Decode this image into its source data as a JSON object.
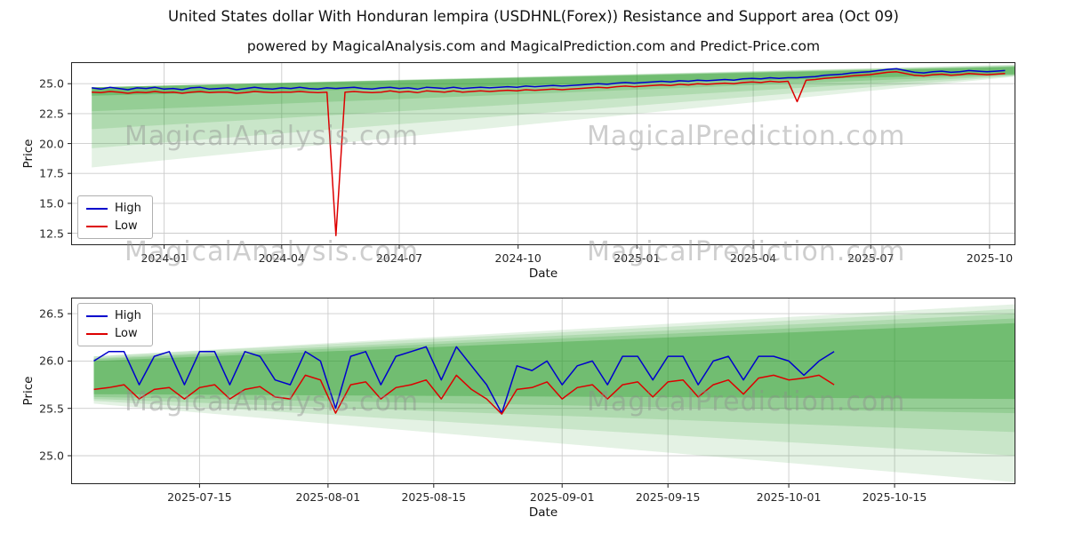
{
  "figure": {
    "title": "United States dollar With Honduran lempira (USDHNL(Forex)) Resistance and Support area (Oct 09)",
    "subtitle": "powered by MagicalAnalysis.com and MagicalPrediction.com and Predict-Price.com",
    "watermark_left": "MagicalAnalysis.com",
    "watermark_right": "MagicalPrediction.com",
    "colors": {
      "high": "#0000cd",
      "low": "#dd0000",
      "band": "#2e9e2e",
      "grid": "#cccccc",
      "spine": "#222222"
    }
  },
  "chart_data": [
    {
      "type": "line",
      "ylabel": "Price",
      "xlabel": "Date",
      "xlim": [
        "2023-10-21",
        "2025-10-21"
      ],
      "ylim": [
        11.5,
        26.8
      ],
      "grid": true,
      "legend_position": "lower-left",
      "y_ticks": [
        12.5,
        15.0,
        17.5,
        20.0,
        22.5,
        25.0
      ],
      "x_ticks": [
        {
          "date": "2024-01-01",
          "label": "2024-01"
        },
        {
          "date": "2024-04-01",
          "label": "2024-04"
        },
        {
          "date": "2024-07-01",
          "label": "2024-07"
        },
        {
          "date": "2024-10-01",
          "label": "2024-10"
        },
        {
          "date": "2025-01-01",
          "label": "2025-01"
        },
        {
          "date": "2025-04-01",
          "label": "2025-04"
        },
        {
          "date": "2025-07-01",
          "label": "2025-07"
        },
        {
          "date": "2025-10-01",
          "label": "2025-10"
        }
      ],
      "series_start": "2023-11-06",
      "series_step_days": 7,
      "series": [
        {
          "name": "High",
          "color": "#0000cd",
          "values": [
            24.65,
            24.55,
            24.7,
            24.6,
            24.5,
            24.65,
            24.6,
            24.7,
            24.55,
            24.6,
            24.5,
            24.65,
            24.7,
            24.55,
            24.6,
            24.65,
            24.5,
            24.6,
            24.7,
            24.6,
            24.55,
            24.65,
            24.6,
            24.7,
            24.6,
            24.55,
            24.65,
            24.6,
            24.65,
            24.7,
            24.6,
            24.55,
            24.65,
            24.7,
            24.6,
            24.65,
            24.55,
            24.7,
            24.65,
            24.6,
            24.7,
            24.6,
            24.65,
            24.7,
            24.65,
            24.7,
            24.75,
            24.7,
            24.8,
            24.75,
            24.8,
            24.85,
            24.8,
            24.85,
            24.9,
            24.95,
            25.0,
            24.95,
            25.05,
            25.1,
            25.05,
            25.1,
            25.15,
            25.2,
            25.15,
            25.25,
            25.2,
            25.3,
            25.25,
            25.3,
            25.35,
            25.3,
            25.4,
            25.45,
            25.4,
            25.5,
            25.45,
            25.5,
            25.5,
            25.55,
            25.6,
            25.7,
            25.75,
            25.8,
            25.9,
            25.95,
            26.0,
            26.1,
            26.2,
            26.25,
            26.1,
            25.95,
            25.9,
            26.0,
            26.05,
            25.95,
            26.0,
            26.1,
            26.05,
            26.0,
            26.05,
            26.1
          ]
        },
        {
          "name": "Low",
          "color": "#dd0000",
          "values": [
            24.3,
            24.25,
            24.35,
            24.3,
            24.2,
            24.3,
            24.25,
            24.35,
            24.25,
            24.3,
            24.2,
            24.3,
            24.35,
            24.25,
            24.3,
            24.3,
            24.2,
            24.25,
            24.35,
            24.3,
            24.25,
            24.3,
            24.3,
            24.35,
            24.3,
            24.25,
            24.3,
            12.3,
            24.3,
            24.35,
            24.3,
            24.25,
            24.3,
            24.4,
            24.3,
            24.35,
            24.25,
            24.4,
            24.35,
            24.3,
            24.4,
            24.3,
            24.35,
            24.4,
            24.35,
            24.4,
            24.45,
            24.4,
            24.5,
            24.45,
            24.5,
            24.55,
            24.5,
            24.55,
            24.6,
            24.65,
            24.7,
            24.65,
            24.75,
            24.8,
            24.75,
            24.8,
            24.85,
            24.9,
            24.85,
            24.95,
            24.9,
            25.0,
            24.95,
            25.0,
            25.05,
            25.0,
            25.1,
            25.15,
            25.1,
            25.2,
            25.15,
            25.2,
            23.5,
            25.3,
            25.35,
            25.45,
            25.5,
            25.55,
            25.65,
            25.7,
            25.75,
            25.85,
            25.95,
            26.0,
            25.85,
            25.7,
            25.65,
            25.75,
            25.8,
            25.7,
            25.75,
            25.85,
            25.8,
            25.75,
            25.8,
            25.85
          ]
        }
      ],
      "bands": [
        {
          "x0": "2023-11-06",
          "x1": "2025-10-21",
          "bot0": 18.0,
          "top0": 24.7,
          "bot1": 25.6,
          "top1": 26.6,
          "color": "#2e9e2e",
          "opacity": 0.13
        },
        {
          "x0": "2023-11-06",
          "x1": "2025-10-21",
          "bot0": 19.6,
          "top0": 24.7,
          "bot1": 25.65,
          "top1": 26.55,
          "color": "#2e9e2e",
          "opacity": 0.15
        },
        {
          "x0": "2023-11-06",
          "x1": "2025-10-21",
          "bot0": 21.2,
          "top0": 24.7,
          "bot1": 25.7,
          "top1": 26.5,
          "color": "#2e9e2e",
          "opacity": 0.17
        },
        {
          "x0": "2023-11-06",
          "x1": "2025-10-21",
          "bot0": 22.7,
          "top0": 24.7,
          "bot1": 25.75,
          "top1": 26.45,
          "color": "#2e9e2e",
          "opacity": 0.2
        },
        {
          "x0": "2023-11-06",
          "x1": "2025-10-21",
          "bot0": 24.0,
          "top0": 24.7,
          "bot1": 25.8,
          "top1": 26.4,
          "color": "#2e9e2e",
          "opacity": 0.35
        }
      ]
    },
    {
      "type": "line",
      "ylabel": "Price",
      "xlabel": "Date",
      "xlim": [
        "2025-06-28",
        "2025-10-31"
      ],
      "ylim": [
        24.7,
        26.67
      ],
      "grid": true,
      "legend_position": "upper-left",
      "y_ticks": [
        25.0,
        25.5,
        26.0,
        26.5
      ],
      "x_ticks": [
        {
          "date": "2025-07-15",
          "label": "2025-07-15"
        },
        {
          "date": "2025-08-01",
          "label": "2025-08-01"
        },
        {
          "date": "2025-08-15",
          "label": "2025-08-15"
        },
        {
          "date": "2025-09-01",
          "label": "2025-09-01"
        },
        {
          "date": "2025-09-15",
          "label": "2025-09-15"
        },
        {
          "date": "2025-10-01",
          "label": "2025-10-01"
        },
        {
          "date": "2025-10-15",
          "label": "2025-10-15"
        }
      ],
      "series_start": "2025-07-01",
      "series_step_days": 2,
      "series": [
        {
          "name": "High",
          "color": "#0000cd",
          "values": [
            26.0,
            26.1,
            26.1,
            25.75,
            26.05,
            26.1,
            25.75,
            26.1,
            26.1,
            25.75,
            26.1,
            26.05,
            25.8,
            25.75,
            26.1,
            26.0,
            25.5,
            26.05,
            26.1,
            25.75,
            26.05,
            26.1,
            26.15,
            25.8,
            26.15,
            25.95,
            25.75,
            25.45,
            25.95,
            25.9,
            26.0,
            25.75,
            25.95,
            26.0,
            25.75,
            26.05,
            26.05,
            25.8,
            26.05,
            26.05,
            25.75,
            26.0,
            26.05,
            25.8,
            26.05,
            26.05,
            26.0,
            25.85,
            26.0,
            26.1
          ]
        },
        {
          "name": "Low",
          "color": "#dd0000",
          "values": [
            25.7,
            25.72,
            25.75,
            25.6,
            25.7,
            25.72,
            25.6,
            25.72,
            25.75,
            25.6,
            25.7,
            25.73,
            25.62,
            25.6,
            25.85,
            25.8,
            25.45,
            25.75,
            25.78,
            25.6,
            25.72,
            25.75,
            25.8,
            25.6,
            25.85,
            25.7,
            25.6,
            25.44,
            25.7,
            25.72,
            25.78,
            25.6,
            25.72,
            25.75,
            25.6,
            25.75,
            25.78,
            25.62,
            25.78,
            25.8,
            25.62,
            25.75,
            25.8,
            25.65,
            25.82,
            25.85,
            25.8,
            25.82,
            25.85,
            25.75
          ]
        }
      ],
      "bands": [
        {
          "x0": "2025-07-01",
          "x1": "2025-10-31",
          "bot0": 25.55,
          "top0": 26.05,
          "bot1": 24.72,
          "top1": 26.6,
          "color": "#2e9e2e",
          "opacity": 0.13
        },
        {
          "x0": "2025-07-01",
          "x1": "2025-10-31",
          "bot0": 25.58,
          "top0": 26.05,
          "bot1": 25.0,
          "top1": 26.55,
          "color": "#2e9e2e",
          "opacity": 0.15
        },
        {
          "x0": "2025-07-01",
          "x1": "2025-10-31",
          "bot0": 25.6,
          "top0": 26.03,
          "bot1": 25.25,
          "top1": 26.5,
          "color": "#2e9e2e",
          "opacity": 0.17
        },
        {
          "x0": "2025-07-01",
          "x1": "2025-10-31",
          "bot0": 25.62,
          "top0": 26.02,
          "bot1": 25.45,
          "top1": 26.45,
          "color": "#2e9e2e",
          "opacity": 0.2
        },
        {
          "x0": "2025-07-01",
          "x1": "2025-10-31",
          "bot0": 25.65,
          "top0": 26.0,
          "bot1": 25.6,
          "top1": 26.4,
          "color": "#2e9e2e",
          "opacity": 0.35
        }
      ]
    }
  ]
}
